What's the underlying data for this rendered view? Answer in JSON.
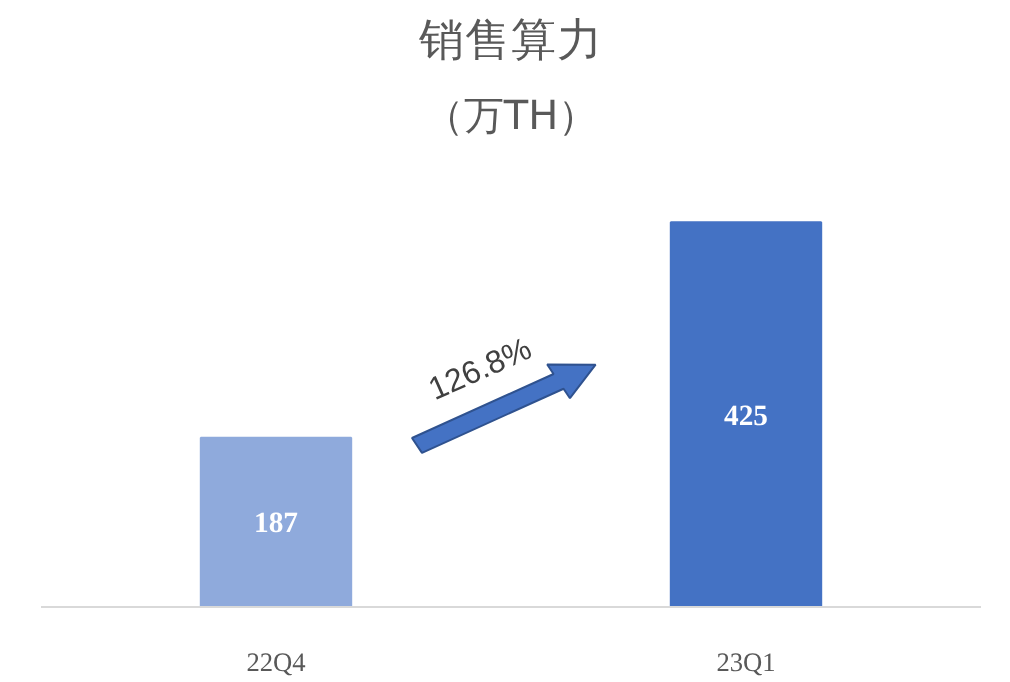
{
  "chart_data": {
    "type": "bar",
    "title": "销售算力",
    "subtitle": "（万TH）",
    "categories": [
      "22Q4",
      "23Q1"
    ],
    "values": [
      187,
      425
    ],
    "colors": [
      "#8faadc",
      "#4472c4"
    ],
    "data_labels": true,
    "grid": false,
    "annotations": [
      "126.8%"
    ]
  }
}
